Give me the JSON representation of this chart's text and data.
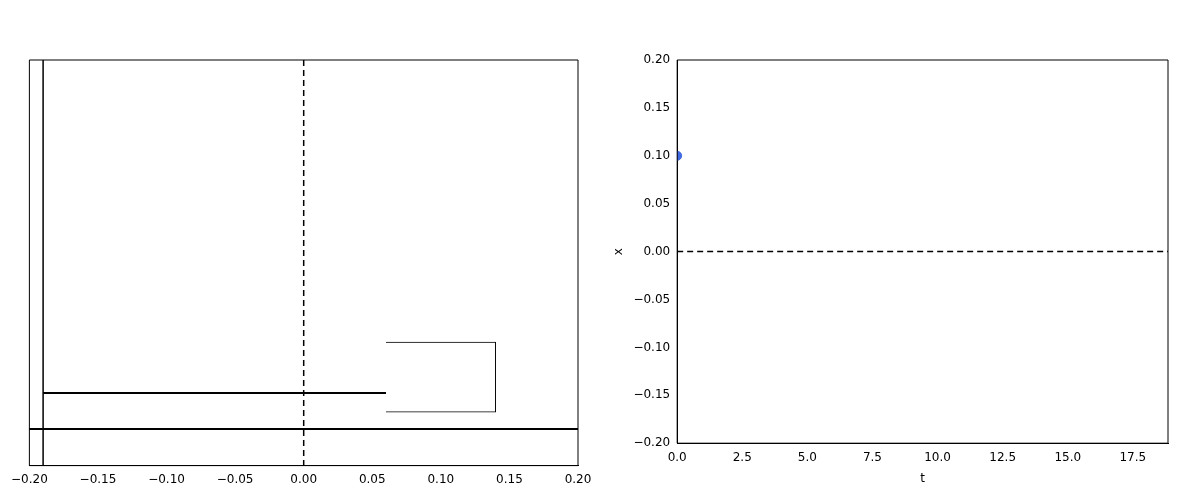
{
  "chart_data": [
    {
      "type": "bar",
      "orientation": "horizontal",
      "categories": [
        null
      ],
      "base": [
        0.06
      ],
      "values": [
        0.08
      ],
      "color": "#ffffff",
      "xlim": [
        -0.2,
        0.2
      ],
      "xticks": [
        {
          "value": -0.2,
          "label": "−0.20"
        },
        {
          "value": -0.15,
          "label": "−0.15"
        },
        {
          "value": -0.1,
          "label": "−0.10"
        },
        {
          "value": -0.05,
          "label": "−0.05"
        },
        {
          "value": 0,
          "label": "0.00"
        },
        {
          "value": 0.05,
          "label": "0.05"
        },
        {
          "value": 0.1,
          "label": "0.10"
        },
        {
          "value": 0.15,
          "label": "0.15"
        },
        {
          "value": 0.2,
          "label": "0.20"
        }
      ],
      "tick_labels": "x",
      "grid": false,
      "legend": false,
      "ref_lines": [
        {
          "axis": "x",
          "value": 0,
          "line_style": "dashed",
          "color": "#000000"
        },
        {
          "axis": "x",
          "value": -0.19,
          "line_style": "solid",
          "color": "#000000"
        }
      ]
    },
    {
      "type": "scatter",
      "x": [
        0
      ],
      "values": [
        0.1
      ],
      "color": "#4169e1",
      "marker": "circle",
      "xlabel": "t",
      "ylabel": "x",
      "xlim": [
        0,
        18.85
      ],
      "xticks": [
        {
          "value": 0,
          "label": "0.0"
        },
        {
          "value": 2.5,
          "label": "2.5"
        },
        {
          "value": 5,
          "label": "5.0"
        },
        {
          "value": 7.5,
          "label": "7.5"
        },
        {
          "value": 10,
          "label": "10.0"
        },
        {
          "value": 12.5,
          "label": "12.5"
        },
        {
          "value": 15,
          "label": "15.0"
        },
        {
          "value": 17.5,
          "label": "17.5"
        }
      ],
      "ylim": [
        -0.2,
        0.2
      ],
      "yticks": [
        {
          "value": -0.2,
          "label": "−0.20"
        },
        {
          "value": -0.15,
          "label": "−0.15"
        },
        {
          "value": -0.1,
          "label": "−0.10"
        },
        {
          "value": -0.05,
          "label": "−0.05"
        },
        {
          "value": 0,
          "label": "0.00"
        },
        {
          "value": 0.05,
          "label": "0.05"
        },
        {
          "value": 0.1,
          "label": "0.10"
        },
        {
          "value": 0.15,
          "label": "0.15"
        },
        {
          "value": 0.2,
          "label": "0.20"
        }
      ],
      "grid": false,
      "legend": false,
      "ref_lines": [
        {
          "axis": "y",
          "value": 0,
          "line_style": "dashed",
          "color": "#000000"
        }
      ]
    }
  ]
}
